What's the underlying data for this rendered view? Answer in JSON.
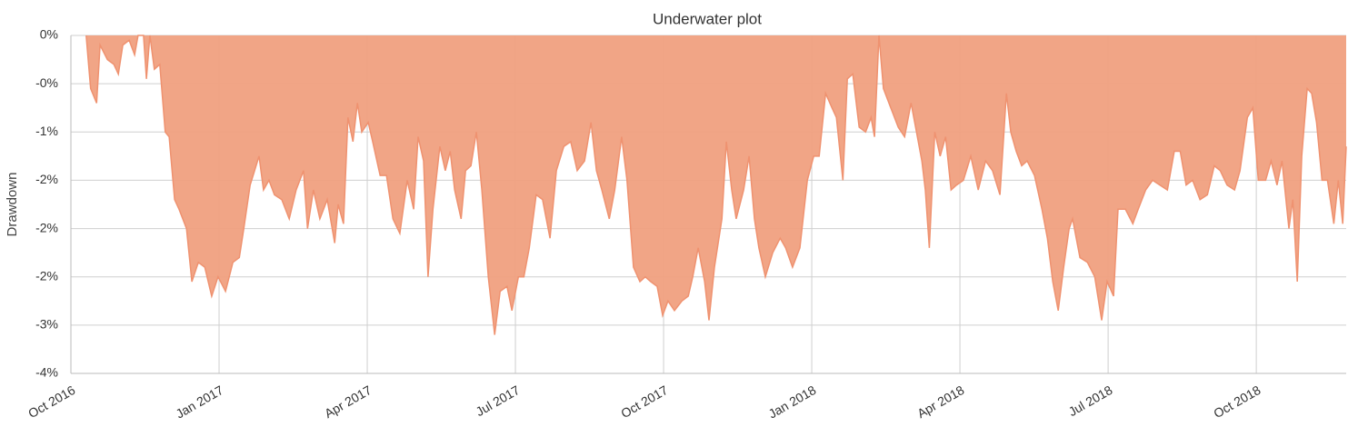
{
  "chart_data": {
    "type": "area",
    "title": "Underwater plot",
    "y_label": "Drawdown",
    "color": "#f0a07f",
    "line_color": "#ef9270",
    "grid": true,
    "xlim": [
      0,
      25.82
    ],
    "xticks": [
      {
        "value": 0,
        "label": "Oct 2016"
      },
      {
        "value": 3,
        "label": "Jan 2017"
      },
      {
        "value": 6,
        "label": "Apr 2017"
      },
      {
        "value": 9,
        "label": "Jul 2017"
      },
      {
        "value": 12,
        "label": "Oct 2017"
      },
      {
        "value": 15,
        "label": "Jan 2018"
      },
      {
        "value": 18,
        "label": "Apr 2018"
      },
      {
        "value": 21,
        "label": "Jul 2018"
      },
      {
        "value": 24,
        "label": "Oct 2018"
      }
    ],
    "ylim": [
      -3.5,
      0
    ],
    "yticks": [
      {
        "value": 0,
        "label": "0%"
      },
      {
        "value": -0.5,
        "label": "-0%"
      },
      {
        "value": -1,
        "label": "-1%"
      },
      {
        "value": -1.5,
        "label": "-2%"
      },
      {
        "value": -2,
        "label": "-2%"
      },
      {
        "value": -2.5,
        "label": "-2%"
      },
      {
        "value": -3,
        "label": "-3%"
      },
      {
        "value": -3.5,
        "label": "-4%"
      }
    ],
    "x": [
      0.31,
      0.4,
      0.52,
      0.59,
      0.74,
      0.87,
      0.96,
      1.05,
      1.18,
      1.29,
      1.36,
      1.47,
      1.53,
      1.6,
      1.69,
      1.8,
      1.91,
      1.99,
      2.1,
      2.19,
      2.34,
      2.45,
      2.58,
      2.71,
      2.85,
      2.98,
      3.13,
      3.28,
      3.41,
      3.5,
      3.63,
      3.81,
      3.9,
      4.01,
      4.12,
      4.27,
      4.42,
      4.56,
      4.71,
      4.79,
      4.91,
      5.04,
      5.19,
      5.34,
      5.41,
      5.52,
      5.61,
      5.71,
      5.8,
      5.89,
      6.02,
      6.11,
      6.26,
      6.39,
      6.52,
      6.66,
      6.81,
      6.94,
      7.03,
      7.14,
      7.23,
      7.33,
      7.47,
      7.58,
      7.68,
      7.77,
      7.9,
      7.99,
      8.1,
      8.21,
      8.32,
      8.45,
      8.58,
      8.69,
      8.83,
      8.93,
      9.06,
      9.17,
      9.28,
      9.42,
      9.55,
      9.7,
      9.83,
      9.98,
      10.12,
      10.25,
      10.4,
      10.53,
      10.64,
      10.75,
      10.9,
      11.01,
      11.15,
      11.26,
      11.39,
      11.52,
      11.63,
      11.74,
      11.87,
      11.98,
      12.09,
      12.22,
      12.37,
      12.5,
      12.59,
      12.7,
      12.83,
      12.92,
      13.03,
      13.18,
      13.27,
      13.38,
      13.47,
      13.62,
      13.73,
      13.84,
      13.93,
      14.06,
      14.21,
      14.36,
      14.47,
      14.61,
      14.76,
      14.91,
      15.04,
      15.15,
      15.28,
      15.41,
      15.5,
      15.63,
      15.72,
      15.83,
      15.96,
      16.09,
      16.2,
      16.27,
      16.36,
      16.45,
      16.6,
      16.75,
      16.88,
      17.01,
      17.12,
      17.23,
      17.3,
      17.38,
      17.49,
      17.6,
      17.71,
      17.82,
      17.93,
      18.07,
      18.22,
      18.37,
      18.52,
      18.66,
      18.81,
      18.94,
      19.03,
      19.14,
      19.25,
      19.36,
      19.51,
      19.66,
      19.77,
      19.88,
      19.99,
      20.1,
      20.21,
      20.28,
      20.43,
      20.58,
      20.73,
      20.87,
      20.98,
      21.11,
      21.2,
      21.35,
      21.5,
      21.61,
      21.76,
      21.9,
      22.05,
      22.2,
      22.34,
      22.46,
      22.58,
      22.71,
      22.86,
      23.01,
      23.15,
      23.27,
      23.41,
      23.56,
      23.67,
      23.82,
      23.93,
      24.04,
      24.19,
      24.3,
      24.42,
      24.52,
      24.66,
      24.74,
      24.83,
      24.92,
      25.03,
      25.12,
      25.22,
      25.33,
      25.44,
      25.57,
      25.66,
      25.75,
      25.82
    ],
    "values": [
      0,
      -0.55,
      -0.7,
      -0.1,
      -0.25,
      -0.3,
      -0.4,
      -0.1,
      -0.05,
      -0.2,
      0,
      0,
      -0.45,
      0,
      -0.35,
      -0.3,
      -1.0,
      -1.05,
      -1.7,
      -1.8,
      -2.0,
      -2.55,
      -2.35,
      -2.4,
      -2.7,
      -2.5,
      -2.65,
      -2.35,
      -2.3,
      -2.0,
      -1.55,
      -1.25,
      -1.6,
      -1.5,
      -1.65,
      -1.7,
      -1.9,
      -1.6,
      -1.4,
      -2.0,
      -1.6,
      -1.9,
      -1.7,
      -2.15,
      -1.75,
      -1.95,
      -0.85,
      -1.1,
      -0.7,
      -1.0,
      -0.9,
      -1.1,
      -1.45,
      -1.45,
      -1.9,
      -2.05,
      -1.5,
      -1.8,
      -1.05,
      -1.3,
      -2.5,
      -1.8,
      -1.15,
      -1.4,
      -1.2,
      -1.6,
      -1.9,
      -1.4,
      -1.35,
      -1.0,
      -1.6,
      -2.5,
      -3.1,
      -2.65,
      -2.6,
      -2.85,
      -2.5,
      -2.5,
      -2.2,
      -1.65,
      -1.7,
      -2.1,
      -1.4,
      -1.15,
      -1.1,
      -1.4,
      -1.3,
      -0.9,
      -1.4,
      -1.6,
      -1.9,
      -1.6,
      -1.05,
      -1.5,
      -2.4,
      -2.55,
      -2.5,
      -2.55,
      -2.6,
      -2.9,
      -2.75,
      -2.85,
      -2.75,
      -2.7,
      -2.5,
      -2.2,
      -2.55,
      -2.95,
      -2.4,
      -1.9,
      -1.1,
      -1.6,
      -1.9,
      -1.6,
      -1.25,
      -1.9,
      -2.2,
      -2.5,
      -2.25,
      -2.1,
      -2.2,
      -2.4,
      -2.2,
      -1.5,
      -1.25,
      -1.25,
      -0.6,
      -0.75,
      -0.85,
      -1.5,
      -0.45,
      -0.4,
      -0.95,
      -1.0,
      -0.85,
      -1.05,
      0,
      -0.55,
      -0.75,
      -0.95,
      -1.05,
      -0.7,
      -1.0,
      -1.3,
      -1.6,
      -2.2,
      -1.0,
      -1.25,
      -1.05,
      -1.6,
      -1.55,
      -1.5,
      -1.25,
      -1.6,
      -1.3,
      -1.4,
      -1.65,
      -0.6,
      -1.0,
      -1.2,
      -1.35,
      -1.3,
      -1.45,
      -1.8,
      -2.1,
      -2.55,
      -2.85,
      -2.4,
      -2.0,
      -1.9,
      -2.3,
      -2.35,
      -2.5,
      -2.95,
      -2.55,
      -2.7,
      -1.8,
      -1.8,
      -1.95,
      -1.8,
      -1.6,
      -1.5,
      -1.55,
      -1.6,
      -1.2,
      -1.2,
      -1.55,
      -1.5,
      -1.7,
      -1.65,
      -1.35,
      -1.4,
      -1.55,
      -1.6,
      -1.4,
      -0.85,
      -0.75,
      -1.5,
      -1.5,
      -1.3,
      -1.55,
      -1.3,
      -2.0,
      -1.7,
      -2.55,
      -1.25,
      -0.55,
      -0.6,
      -0.9,
      -1.5,
      -1.5,
      -1.95,
      -1.5,
      -1.95,
      -1.15
    ]
  }
}
